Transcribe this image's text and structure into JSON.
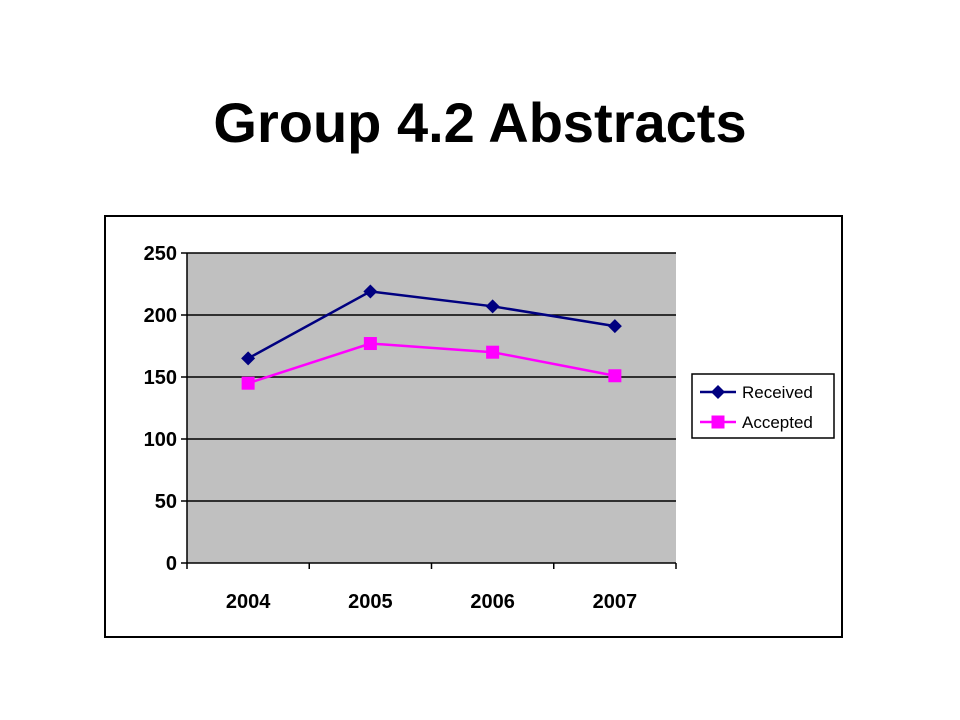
{
  "slide": {
    "title": "Group 4.2 Abstracts"
  },
  "colors": {
    "plot_background": "#c0c0c0",
    "gridline": "#000000",
    "received": "#000080",
    "accepted": "#ff00ff"
  },
  "chart_data": {
    "type": "line",
    "title": "",
    "xlabel": "",
    "ylabel": "",
    "categories": [
      "2004",
      "2005",
      "2006",
      "2007"
    ],
    "ylim": [
      0,
      250
    ],
    "yticks": [
      0,
      50,
      100,
      150,
      200,
      250
    ],
    "grid": true,
    "legend_position": "right",
    "series": [
      {
        "name": "Received",
        "values": [
          165,
          219,
          207,
          191
        ],
        "color": "#000080",
        "marker": "diamond"
      },
      {
        "name": "Accepted",
        "values": [
          145,
          177,
          170,
          151
        ],
        "color": "#ff00ff",
        "marker": "square"
      }
    ]
  }
}
